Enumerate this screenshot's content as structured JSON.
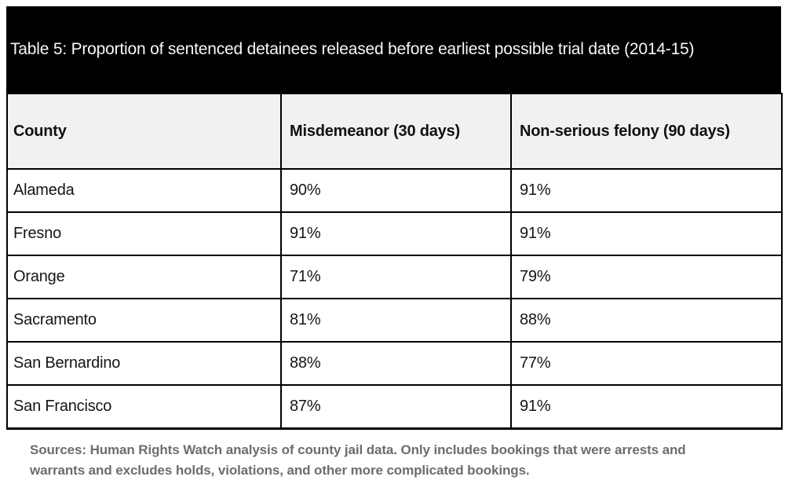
{
  "title": "Table 5: Proportion of sentenced detainees released before earliest possible trial date (2014-15)",
  "table": {
    "columns": [
      "County",
      "Misdemeanor (30 days)",
      "Non-serious felony (90 days)"
    ],
    "rows": [
      {
        "county": "Alameda",
        "misdemeanor": "90%",
        "felony": "91%"
      },
      {
        "county": "Fresno",
        "misdemeanor": "91%",
        "felony": "91%"
      },
      {
        "county": "Orange",
        "misdemeanor": "71%",
        "felony": "79%"
      },
      {
        "county": "Sacramento",
        "misdemeanor": "81%",
        "felony": "88%"
      },
      {
        "county": "San Bernardino",
        "misdemeanor": "88%",
        "felony": "77%"
      },
      {
        "county": "San Francisco",
        "misdemeanor": "87%",
        "felony": "91%"
      }
    ]
  },
  "footnote": "Sources: Human Rights Watch analysis of county jail data. Only includes bookings that were arrests and warrants and excludes holds, violations, and other more complicated bookings.",
  "colors": {
    "title_band_bg": "#000000",
    "title_text": "#f7f7f7",
    "header_row_bg": "#f1f1f1",
    "table_border": "#000000",
    "body_text": "#151515",
    "footnote_text": "#6d6d6d",
    "page_bg": "#ffffff"
  },
  "chart_data": {
    "type": "table",
    "title": "Table 5: Proportion of sentenced detainees released before earliest possible trial date (2014-15)",
    "categories": [
      "Alameda",
      "Fresno",
      "Orange",
      "Sacramento",
      "San Bernardino",
      "San Francisco"
    ],
    "series": [
      {
        "name": "Misdemeanor (30 days)",
        "values": [
          90,
          91,
          71,
          81,
          88,
          87
        ],
        "unit": "%"
      },
      {
        "name": "Non-serious felony (90 days)",
        "values": [
          91,
          91,
          79,
          88,
          77,
          91
        ],
        "unit": "%"
      }
    ],
    "xlabel": "County",
    "source_note": "Sources: Human Rights Watch analysis of county jail data. Only includes bookings that were arrests and warrants and excludes holds, violations, and other more complicated bookings."
  }
}
